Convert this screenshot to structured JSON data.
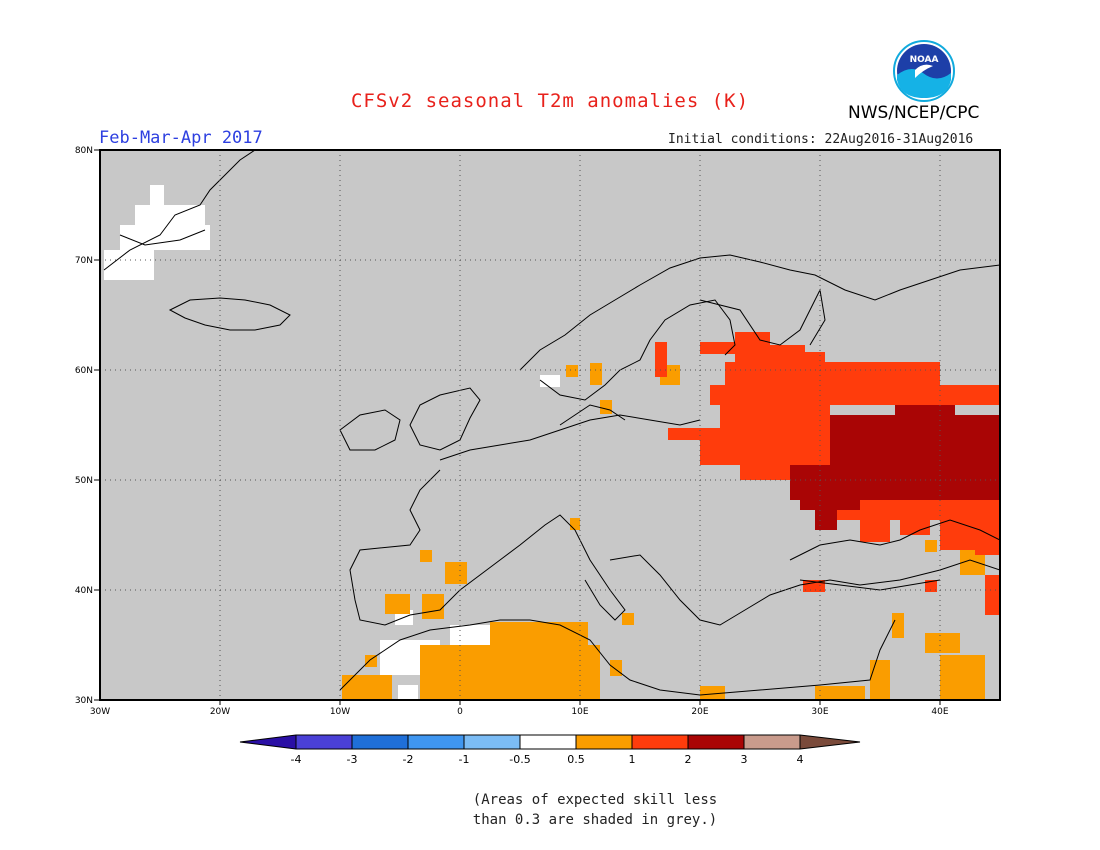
{
  "header": {
    "title": "CFSv2 seasonal T2m anomalies (K)",
    "season": "Feb-Mar-Apr 2017",
    "initial_conditions": "Initial conditions: 22Aug2016-31Aug2016",
    "agency": "NWS/NCEP/CPC",
    "logo_text": "NOAA"
  },
  "map": {
    "lat_labels": [
      "80N",
      "70N",
      "60N",
      "50N",
      "40N",
      "30N"
    ],
    "lon_labels": [
      "30W",
      "20W",
      "10W",
      "0",
      "10E",
      "20E",
      "30E",
      "40E"
    ],
    "extent": {
      "lon": [
        -30,
        45
      ],
      "lat": [
        30,
        80
      ]
    },
    "grid": "dotted 10-degree graticule",
    "background": "#c8c8c8"
  },
  "colorbar": {
    "labels": [
      "-4",
      "-3",
      "-2",
      "-1",
      "-0.5",
      "0.5",
      "1",
      "2",
      "3",
      "4"
    ],
    "colors": [
      "#2a0fa5",
      "#4a40d6",
      "#1f6fd8",
      "#3f96f0",
      "#7bbcf5",
      "#ffffff",
      "#fa9d00",
      "#ff3c0c",
      "#a90505",
      "#c99b8c",
      "#7a4a3a"
    ]
  },
  "note": {
    "line1": "(Areas of expected skill less",
    "line2": "than 0.3 are shaded in grey.)"
  }
}
